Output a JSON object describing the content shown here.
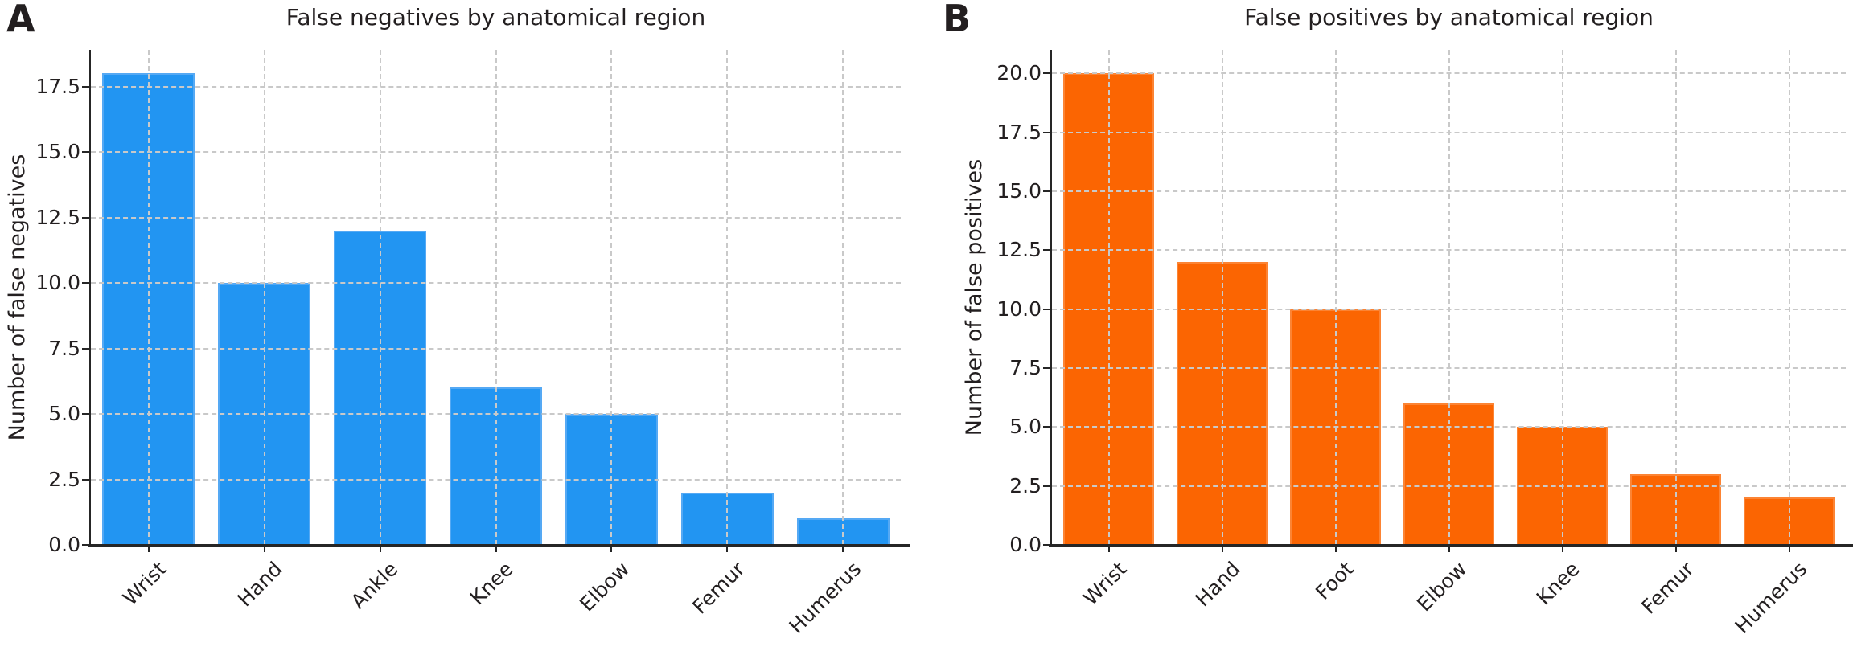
{
  "figure": {
    "background": "#ffffff",
    "text_color": "#231f20",
    "grid_color": "#c9c9c9",
    "spine_color": "#262626"
  },
  "chart_data": [
    {
      "type": "bar",
      "panel_label": "A",
      "title": "False negatives by anatomical region",
      "xlabel": "",
      "ylabel": "Number of false negatives",
      "categories": [
        "Wrist",
        "Hand",
        "Ankle",
        "Knee",
        "Elbow",
        "Femur",
        "Humerus"
      ],
      "values": [
        18,
        10,
        12,
        6,
        5,
        2,
        1
      ],
      "ytick_labels": [
        "0.0",
        "2.5",
        "5.0",
        "7.5",
        "10.0",
        "12.5",
        "15.0",
        "17.5"
      ],
      "ylim": [
        0,
        18.9
      ],
      "bar_color": "#2295f2",
      "bar_edge_color": "#55a9f4",
      "grid": "on",
      "legend": "none",
      "xtick_rotation_deg": 45
    },
    {
      "type": "bar",
      "panel_label": "B",
      "title": "False positives by anatomical region",
      "xlabel": "",
      "ylabel": "Number of false positives",
      "categories": [
        "Wrist",
        "Hand",
        "Foot",
        "Elbow",
        "Knee",
        "Femur",
        "Humerus"
      ],
      "values": [
        20,
        12,
        10,
        6,
        5,
        3,
        2
      ],
      "ytick_labels": [
        "0.0",
        "2.5",
        "5.0",
        "7.5",
        "10.0",
        "12.5",
        "15.0",
        "17.5",
        "20.0"
      ],
      "ylim": [
        0,
        21
      ],
      "bar_color": "#fb6502",
      "bar_edge_color": "#fc8434",
      "grid": "on",
      "legend": "none",
      "xtick_rotation_deg": 45
    }
  ]
}
